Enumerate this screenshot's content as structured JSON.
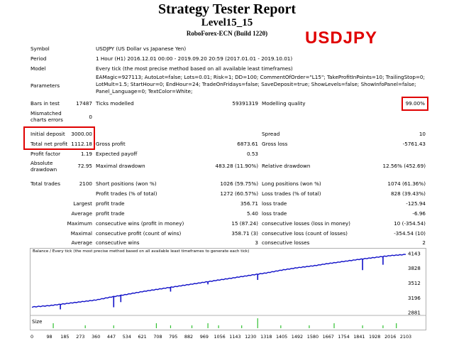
{
  "report": {
    "title": "Strategy Tester Report",
    "subtitle": "Level15_15",
    "server": "RoboForex-ECN (Build 1220)",
    "symbol_badge": "USDJPY"
  },
  "info": {
    "symbol_label": "Symbol",
    "symbol_value": "USDJPY (US Dollar vs Japanese Yen)",
    "period_label": "Period",
    "period_value": "1 Hour (H1) 2016.12.01 00:00 - 2019.09.20 20:59 (2017.01.01 - 2019.10.01)",
    "model_label": "Model",
    "model_value": "Every tick (the most precise method based on all available least timeframes)",
    "parameters_label": "Parameters",
    "parameters_lines": [
      "EAMagic=927113; AutoLot=false; Lots=0.01; Risk=1; DD=100; CommentOfOrder=\"L15\"; TakeProfitInPoints=10; TrailingStop=0;",
      "LotMult=1.5; StartHour=0; EndHour=24; TradeOnFridays=false; SaveDeposit=true; ShowLevels=false; ShowInfoPanel=false;",
      "Panel_Language=0; TextColor=White;"
    ]
  },
  "stats": {
    "bars_label": "Bars in test",
    "bars_value": "17487",
    "ticks_label": "Ticks modelled",
    "ticks_value": "59391319",
    "quality_label": "Modelling quality",
    "quality_value": "99.00%",
    "mismatch_label_1": "Mismatched",
    "mismatch_label_2": "charts errors",
    "mismatch_value": "0",
    "initial_label": "Initial deposit",
    "initial_value": "3000.00",
    "spread_label": "Spread",
    "spread_value": "10",
    "net_label": "Total net profit",
    "net_value": "1112.18",
    "gross_profit_label": "Gross profit",
    "gross_profit_value": "6873.61",
    "gross_loss_label": "Gross loss",
    "gross_loss_value": "-5761.43",
    "pf_label": "Profit factor",
    "pf_value": "1.19",
    "ep_label": "Expected payoff",
    "ep_value": "0.53",
    "abs_dd_label_1": "Absolute",
    "abs_dd_label_2": "drawdown",
    "abs_dd_value": "72.95",
    "max_dd_label": "Maximal drawdown",
    "max_dd_value": "483.28 (11.90%)",
    "rel_dd_label": "Relative drawdown",
    "rel_dd_value": "12.56% (452.69)",
    "total_trades_label": "Total trades",
    "total_trades_value": "2100",
    "short_label": "Short positions (won %)",
    "short_value": "1026 (59.75%)",
    "long_label": "Long positions (won %)",
    "long_value": "1074 (61.36%)",
    "profit_trades_label": "Profit trades (% of total)",
    "profit_trades_value": "1272 (60.57%)",
    "loss_trades_label": "Loss trades (% of total)",
    "loss_trades_value": "828 (39.43%)",
    "largest_label": "Largest",
    "largest_profit_label": "profit trade",
    "largest_profit_value": "356.71",
    "largest_loss_label": "loss trade",
    "largest_loss_value": "-125.94",
    "average_label": "Average",
    "average_profit_label": "profit trade",
    "average_profit_value": "5.40",
    "average_loss_label": "loss trade",
    "average_loss_value": "-6.96",
    "maximum_label": "Maximum",
    "max_cons_wins_label": "consecutive wins (profit in money)",
    "max_cons_wins_value": "15 (87.24)",
    "max_cons_losses_label": "consecutive losses (loss in money)",
    "max_cons_losses_value": "10 (-354.54)",
    "maximal_label": "Maximal",
    "maximal_cons_profit_label": "consecutive profit (count of wins)",
    "maximal_cons_profit_value": "358.71 (3)",
    "maximal_cons_loss_label": "consecutive loss (count of losses)",
    "maximal_cons_loss_value": "-354.54 (10)",
    "avg_cons_label": "Average",
    "avg_cons_wins_label": "consecutive wins",
    "avg_cons_wins_value": "3",
    "avg_cons_losses_label": "consecutive losses",
    "avg_cons_losses_value": "2"
  },
  "chart_data": {
    "type": "line",
    "title": "Balance / Every tick (the most precise method based on all available least timeframes to generate each tick)",
    "y_ticks": [
      "4143",
      "3828",
      "3512",
      "3196",
      "2881"
    ],
    "ylim": [
      2881,
      4143
    ],
    "size_label": "Size",
    "x_ticks": [
      "0",
      "98",
      "185",
      "273",
      "360",
      "447",
      "534",
      "621",
      "708",
      "795",
      "882",
      "969",
      "1056",
      "1143",
      "1230",
      "1318",
      "1405",
      "1492",
      "1580",
      "1667",
      "1754",
      "1841",
      "1928",
      "2016",
      "2103"
    ],
    "xlim": [
      0,
      2103
    ],
    "series": [
      {
        "color": "#1010c8",
        "x": [
          0,
          98,
          185,
          273,
          360,
          447,
          534,
          621,
          708,
          795,
          882,
          969,
          1056,
          1143,
          1230,
          1318,
          1405,
          1492,
          1580,
          1667,
          1754,
          1841,
          1928,
          2016,
          2103
        ],
        "values": [
          3000,
          3030,
          3070,
          3110,
          3150,
          3215,
          3270,
          3330,
          3380,
          3430,
          3480,
          3530,
          3580,
          3630,
          3680,
          3730,
          3790,
          3840,
          3880,
          3930,
          3975,
          4020,
          4060,
          4100,
          4125
        ]
      }
    ],
    "drops": [
      {
        "x": 160,
        "y": 2950
      },
      {
        "x": 460,
        "y": 2995
      },
      {
        "x": 500,
        "y": 3105
      },
      {
        "x": 780,
        "y": 3330
      },
      {
        "x": 990,
        "y": 3485
      },
      {
        "x": 1270,
        "y": 3580
      },
      {
        "x": 1860,
        "y": 3790
      },
      {
        "x": 1975,
        "y": 3905
      }
    ]
  },
  "colors": {
    "balance_line": "#1010c8",
    "highlight_box": "#e00000",
    "size_bars": "#30c030"
  }
}
